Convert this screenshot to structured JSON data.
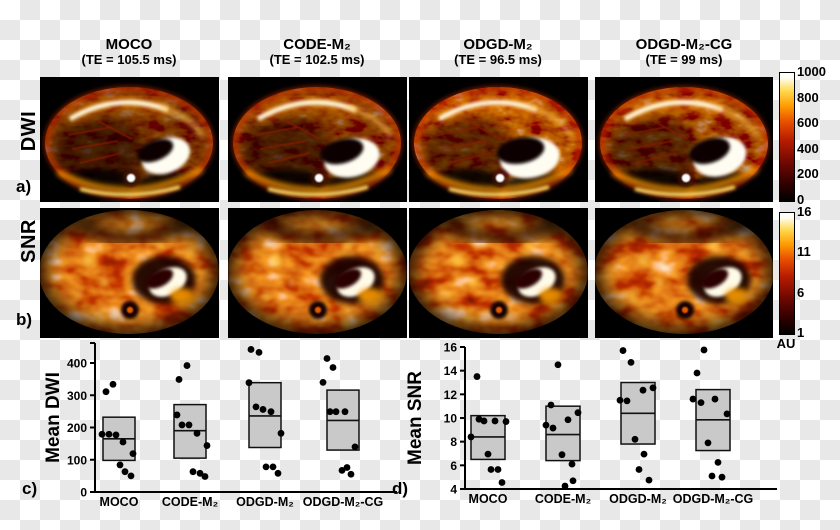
{
  "header": {
    "columns": [
      {
        "label": "MOCO",
        "te": "(TE = 105.5 ms)"
      },
      {
        "label": "CODE-M₂",
        "te": "(TE = 102.5 ms)"
      },
      {
        "label": "ODGD-M₂",
        "te": "(TE = 96.5 ms)"
      },
      {
        "label": "ODGD-M₂-CG",
        "te": "(TE = 99 ms)"
      }
    ]
  },
  "rows": [
    {
      "label": "DWI",
      "panel": "a)"
    },
    {
      "label": "SNR",
      "panel": "b)"
    }
  ],
  "mri_images": {
    "description": "Axial abdominal MR images rendered in a hot (black-red-yellow-white) colormap",
    "grid": [
      "DWI x MOCO",
      "DWI x CODE-M₂",
      "DWI x ODGD-M₂",
      "DWI x ODGD-M₂-CG",
      "SNR x MOCO",
      "SNR x CODE-M₂",
      "SNR x ODGD-M₂",
      "SNR x ODGD-M₂-CG"
    ]
  },
  "colorbars": {
    "dwi": {
      "ticks": [
        "1000",
        "800",
        "600",
        "400",
        "200",
        "0"
      ]
    },
    "snr": {
      "ticks": [
        "16",
        "11",
        "6",
        "1"
      ],
      "unit": "AU"
    }
  },
  "chart_data": [
    {
      "type": "scatter",
      "panel": "c)",
      "ylabel": "Mean DWI",
      "categories": [
        "MOCO",
        "CODE-M₂",
        "ODGD-M₂",
        "ODGD-M₂-CG"
      ],
      "ylim": [
        0,
        460
      ],
      "yticks": [
        0,
        100,
        200,
        300,
        400
      ],
      "boxes": [
        {
          "low": 98,
          "high": 232,
          "mean": 165
        },
        {
          "low": 105,
          "high": 271,
          "mean": 190
        },
        {
          "low": 138,
          "high": 339,
          "mean": 236
        },
        {
          "low": 130,
          "high": 316,
          "mean": 222
        }
      ],
      "points": [
        [
          {
            "v": 311,
            "dx": -13
          },
          {
            "v": 334,
            "dx": -6
          },
          {
            "v": 179,
            "dx": -17
          },
          {
            "v": 179,
            "dx": -10
          },
          {
            "v": 177,
            "dx": -3
          },
          {
            "v": 155,
            "dx": 4
          },
          {
            "v": 119,
            "dx": 14
          },
          {
            "v": 84,
            "dx": 1
          },
          {
            "v": 63,
            "dx": 6
          },
          {
            "v": 50,
            "dx": 12
          }
        ],
        [
          {
            "v": 392,
            "dx": -3
          },
          {
            "v": 349,
            "dx": -11
          },
          {
            "v": 239,
            "dx": -13
          },
          {
            "v": 208,
            "dx": -8
          },
          {
            "v": 208,
            "dx": -1
          },
          {
            "v": 182,
            "dx": 7
          },
          {
            "v": 144,
            "dx": 17
          },
          {
            "v": 63,
            "dx": 3
          },
          {
            "v": 58,
            "dx": 10
          },
          {
            "v": 48,
            "dx": 15
          }
        ],
        [
          {
            "v": 442,
            "dx": -14
          },
          {
            "v": 433,
            "dx": -6
          },
          {
            "v": 339,
            "dx": -16
          },
          {
            "v": 264,
            "dx": -9
          },
          {
            "v": 256,
            "dx": -2
          },
          {
            "v": 249,
            "dx": 6
          },
          {
            "v": 182,
            "dx": 16
          },
          {
            "v": 78,
            "dx": 1
          },
          {
            "v": 78,
            "dx": 8
          },
          {
            "v": 58,
            "dx": 13
          }
        ],
        [
          {
            "v": 414,
            "dx": -16
          },
          {
            "v": 386,
            "dx": -10
          },
          {
            "v": 340,
            "dx": -20
          },
          {
            "v": 249,
            "dx": -13
          },
          {
            "v": 249,
            "dx": -7
          },
          {
            "v": 249,
            "dx": 2
          },
          {
            "v": 140,
            "dx": 12
          },
          {
            "v": 76,
            "dx": 4
          },
          {
            "v": 67,
            "dx": -1
          },
          {
            "v": 55,
            "dx": 8
          }
        ]
      ]
    },
    {
      "type": "scatter",
      "panel": "d)",
      "ylabel": "Mean SNR",
      "categories": [
        "MOCO",
        "CODE-M₂",
        "ODGD-M₂",
        "ODGD-M₂-CG"
      ],
      "ylim": [
        4,
        16
      ],
      "yticks": [
        4,
        6,
        8,
        10,
        12,
        14,
        16
      ],
      "boxes": [
        {
          "low": 6.5,
          "high": 10.2,
          "mean": 8.4
        },
        {
          "low": 6.4,
          "high": 11.0,
          "mean": 8.6
        },
        {
          "low": 7.8,
          "high": 13.0,
          "mean": 10.4
        },
        {
          "low": 7.25,
          "high": 12.4,
          "mean": 9.85
        }
      ],
      "points": [
        [
          {
            "v": 13.5,
            "dx": -11
          },
          {
            "v": 9.9,
            "dx": -9
          },
          {
            "v": 9.75,
            "dx": -4
          },
          {
            "v": 9.75,
            "dx": 7
          },
          {
            "v": 9.7,
            "dx": 18
          },
          {
            "v": 8.4,
            "dx": -17
          },
          {
            "v": 6.95,
            "dx": 0
          },
          {
            "v": 5.65,
            "dx": 3
          },
          {
            "v": 5.65,
            "dx": 10
          },
          {
            "v": 4.55,
            "dx": 14
          }
        ],
        [
          {
            "v": 14.5,
            "dx": -5
          },
          {
            "v": 11.1,
            "dx": -12
          },
          {
            "v": 10.45,
            "dx": 15
          },
          {
            "v": 9.85,
            "dx": 5
          },
          {
            "v": 9.4,
            "dx": -17
          },
          {
            "v": 9.15,
            "dx": -10
          },
          {
            "v": 6.9,
            "dx": -1
          },
          {
            "v": 6.1,
            "dx": 9
          },
          {
            "v": 4.7,
            "dx": 10
          },
          {
            "v": 4.25,
            "dx": 2
          }
        ],
        [
          {
            "v": 15.7,
            "dx": -15
          },
          {
            "v": 14.7,
            "dx": -7
          },
          {
            "v": 12.55,
            "dx": 15
          },
          {
            "v": 12.35,
            "dx": 5
          },
          {
            "v": 11.5,
            "dx": -18
          },
          {
            "v": 11.45,
            "dx": -11
          },
          {
            "v": 8.2,
            "dx": -3
          },
          {
            "v": 6.95,
            "dx": 6
          },
          {
            "v": 5.65,
            "dx": 1
          },
          {
            "v": 4.75,
            "dx": 11
          }
        ],
        [
          {
            "v": 15.75,
            "dx": -9
          },
          {
            "v": 13.8,
            "dx": -16
          },
          {
            "v": 11.6,
            "dx": -20
          },
          {
            "v": 11.3,
            "dx": -12
          },
          {
            "v": 11.6,
            "dx": 2
          },
          {
            "v": 10.35,
            "dx": 14
          },
          {
            "v": 7.9,
            "dx": -5
          },
          {
            "v": 6.25,
            "dx": 5
          },
          {
            "v": 5.1,
            "dx": -1
          },
          {
            "v": 5.0,
            "dx": 9
          }
        ]
      ]
    }
  ]
}
